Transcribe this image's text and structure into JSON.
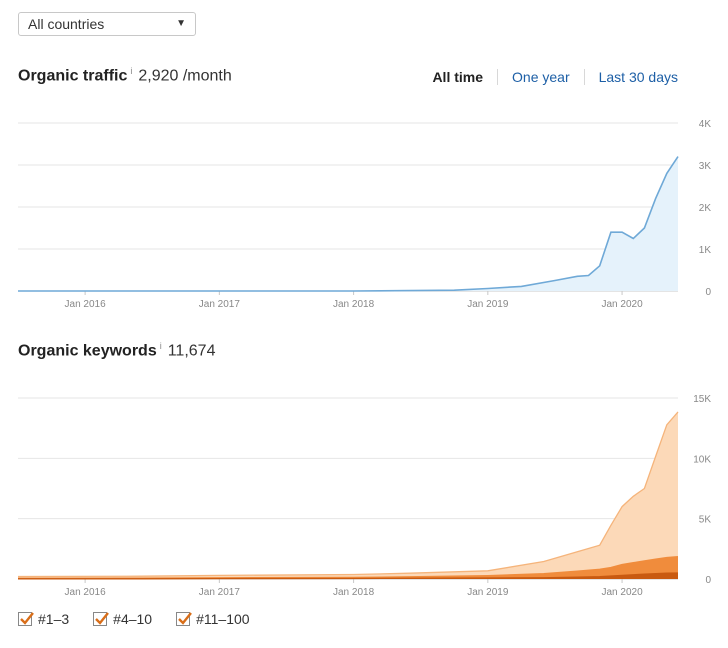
{
  "filter": {
    "country_value": "All countries"
  },
  "traffic": {
    "label": "Organic traffic",
    "info": "i",
    "value": "2,920 /month"
  },
  "keywords": {
    "label": "Organic keywords",
    "info": "i",
    "value": "11,674"
  },
  "range_tabs": [
    "All time",
    "One year",
    "Last 30 days"
  ],
  "colors": {
    "traffic_line": "#6fa9d7",
    "traffic_fill": "#e5f2fb",
    "kw_top3": "#c95a10",
    "kw_4_10": "#f08c3c",
    "kw_11_100": "#fcd9b8",
    "kw_11_100_line": "#f5b47b",
    "grid": "#e6e6e6",
    "axis_text": "#888888",
    "checkmark": "#d96e19"
  },
  "chart_data": [
    {
      "type": "line",
      "title": "Organic traffic",
      "x_ticks": [
        "Jan 2016",
        "Jan 2017",
        "Jan 2018",
        "Jan 2019",
        "Jan 2020"
      ],
      "y_ticks": [
        "4K",
        "3K",
        "2K",
        "1K",
        "0"
      ],
      "ylim": [
        0,
        4000
      ],
      "xlim": [
        "2015-07",
        "2020-06"
      ],
      "series": [
        {
          "x": [
            "2015-07",
            "2018-01",
            "2018-10",
            "2019-01",
            "2019-04",
            "2019-07",
            "2019-09",
            "2019-10",
            "2019-11",
            "2019-12",
            "2020-01",
            "2020-02",
            "2020-03",
            "2020-04",
            "2020-05",
            "2020-06"
          ],
          "values": [
            0,
            0,
            20,
            60,
            110,
            250,
            350,
            370,
            600,
            1400,
            1400,
            1250,
            1500,
            2200,
            2800,
            3200
          ]
        }
      ]
    },
    {
      "type": "area",
      "title": "Organic keywords",
      "x_ticks": [
        "Jan 2016",
        "Jan 2017",
        "Jan 2018",
        "Jan 2019",
        "Jan 2020"
      ],
      "y_ticks": [
        "15K",
        "10K",
        "5K",
        "0"
      ],
      "ylim": [
        0,
        15000
      ],
      "xlim": [
        "2015-07",
        "2020-06"
      ],
      "x": [
        "2015-07",
        "2016-06",
        "2017-01",
        "2018-01",
        "2018-06",
        "2019-01",
        "2019-06",
        "2019-09",
        "2019-11",
        "2019-12",
        "2020-01",
        "2020-02",
        "2020-03",
        "2020-04",
        "2020-05",
        "2020-06"
      ],
      "series": [
        {
          "name": "#1–3",
          "values": [
            20,
            20,
            30,
            40,
            60,
            80,
            100,
            150,
            200,
            250,
            300,
            350,
            400,
            450,
            480,
            500
          ]
        },
        {
          "name": "#4–10",
          "values": [
            40,
            50,
            70,
            90,
            120,
            200,
            350,
            500,
            600,
            700,
            900,
            1000,
            1100,
            1200,
            1300,
            1350
          ]
        },
        {
          "name": "#11–100",
          "values": [
            150,
            160,
            200,
            240,
            300,
            400,
            1000,
            1600,
            2000,
            3500,
            4800,
            5500,
            6000,
            8500,
            11000,
            12000
          ]
        }
      ],
      "legend": [
        "#1–3",
        "#4–10",
        "#11–100"
      ]
    }
  ]
}
